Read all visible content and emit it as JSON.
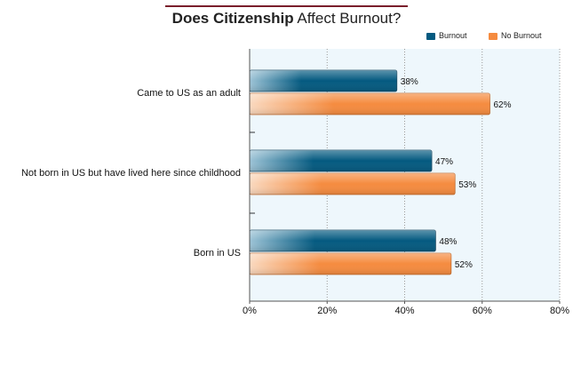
{
  "chart_data": {
    "type": "bar",
    "orientation": "horizontal",
    "title_bold": "Does Citizenship",
    "title_rest": " Affect Burnout?",
    "categories": [
      "Came to US as an adult",
      "Not born in US but have lived here since childhood",
      "Born in US"
    ],
    "series": [
      {
        "name": "Burnout",
        "values": [
          38,
          47,
          48
        ],
        "labels": [
          "38%",
          "47%",
          "48%"
        ],
        "color": "#045a80",
        "light": "#9cc3d6"
      },
      {
        "name": "No Burnout",
        "values": [
          62,
          53,
          52
        ],
        "labels": [
          "62%",
          "53%",
          "52%"
        ],
        "color": "#f58b3f",
        "light": "#fad9bf"
      }
    ],
    "xlim": [
      0,
      80
    ],
    "xticks": [
      0,
      20,
      40,
      60,
      80
    ],
    "xtick_labels": [
      "0%",
      "20%",
      "40%",
      "60%",
      "80%"
    ],
    "grid": true,
    "legend_position": "top-right",
    "plot_background": "#eef7fc"
  }
}
